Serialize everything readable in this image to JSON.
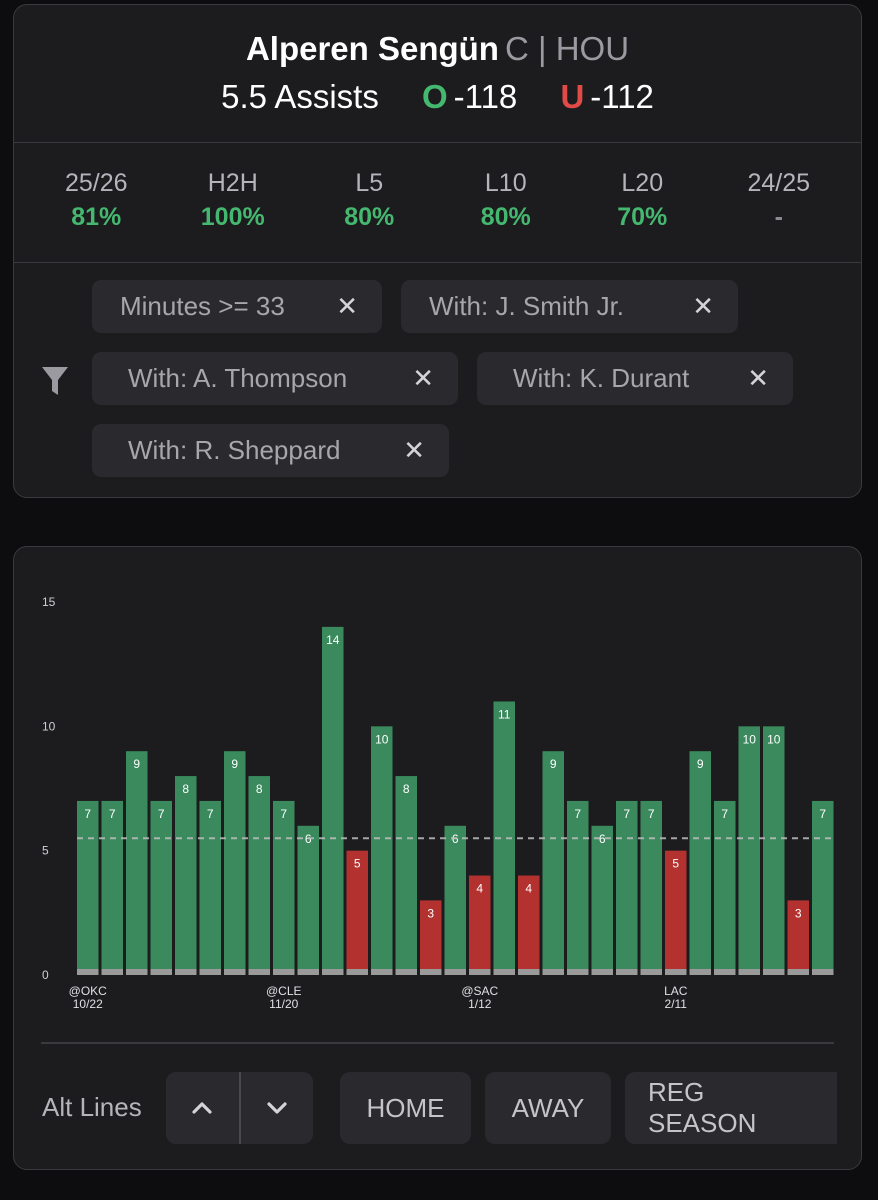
{
  "header": {
    "player_name": "Alperen Sengün",
    "player_meta": "C | HOU",
    "line": "5.5 Assists",
    "over_label": "O",
    "over_odds": "-118",
    "under_label": "U",
    "under_odds": "-112"
  },
  "stats": [
    {
      "label": "25/26",
      "value": "81%"
    },
    {
      "label": "H2H",
      "value": "100%"
    },
    {
      "label": "L5",
      "value": "80%"
    },
    {
      "label": "L10",
      "value": "80%"
    },
    {
      "label": "L20",
      "value": "70%"
    },
    {
      "label": "24/25",
      "value": "-"
    }
  ],
  "filters": [
    {
      "label": "Minutes >= 33",
      "remove": "✕"
    },
    {
      "label": "With: J. Smith Jr.",
      "remove": "✕"
    },
    {
      "label": "With: A. Thompson",
      "remove": "✕"
    },
    {
      "label": "With: K. Durant",
      "remove": "✕"
    },
    {
      "label": "With: R. Sheppard",
      "remove": "✕"
    }
  ],
  "chart_data": {
    "type": "bar",
    "title": "",
    "xlabel": "",
    "ylabel": "",
    "ylim": [
      0,
      15
    ],
    "yticks": [
      0,
      5,
      10,
      15
    ],
    "line": 5.5,
    "values": [
      7,
      7,
      9,
      7,
      8,
      7,
      9,
      8,
      7,
      6,
      14,
      5,
      10,
      8,
      3,
      6,
      4,
      11,
      4,
      9,
      7,
      6,
      7,
      7,
      5,
      9,
      7,
      10,
      10,
      3,
      7
    ],
    "x_labels": [
      {
        "index": 0,
        "opponent": "@OKC",
        "date": "10/22"
      },
      {
        "index": 8,
        "opponent": "@CLE",
        "date": "11/20"
      },
      {
        "index": 16,
        "opponent": "@SAC",
        "date": "1/12"
      },
      {
        "index": 24,
        "opponent": "LAC",
        "date": "2/11"
      }
    ],
    "colors": {
      "over": "#3a8a5e",
      "under": "#b3322f",
      "base": "#9a9a9a",
      "line": "#bdbdbd"
    }
  },
  "controls": {
    "alt_lines_label": "Alt Lines",
    "up_icon": "chevron-up-icon",
    "down_icon": "chevron-down-icon",
    "home": "HOME",
    "away": "AWAY",
    "reg_season": "REG SEASON"
  }
}
